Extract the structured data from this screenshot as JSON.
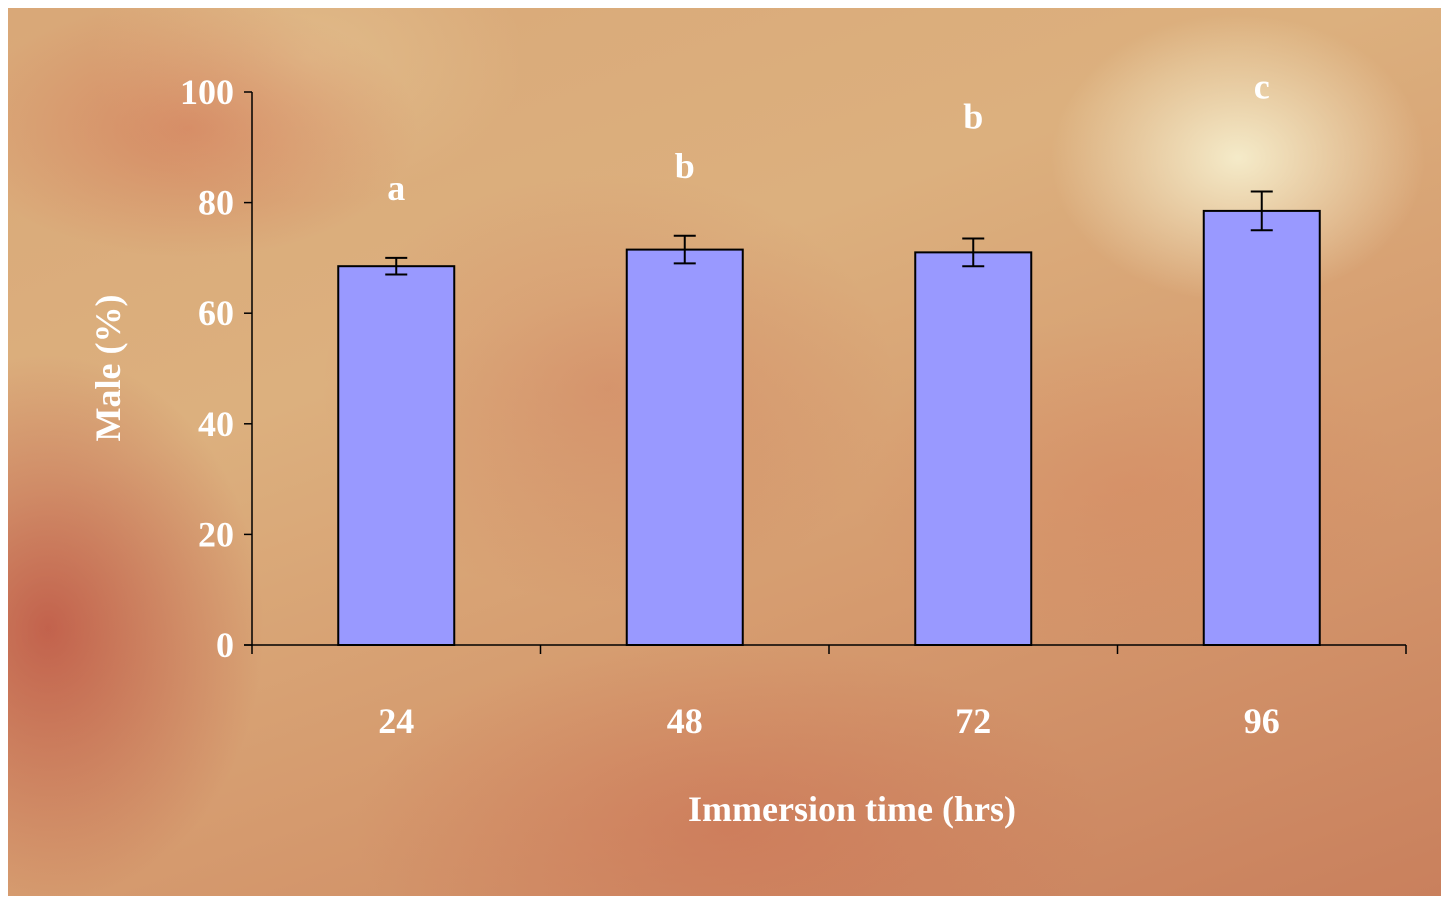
{
  "chart_data": {
    "type": "bar",
    "categories": [
      "24",
      "48",
      "72",
      "96"
    ],
    "values": [
      68.5,
      71.5,
      71.0,
      78.5
    ],
    "errors": [
      1.5,
      2.5,
      2.5,
      3.5
    ],
    "significance_letters": [
      "a",
      "b",
      "b",
      "c"
    ],
    "title": "",
    "xlabel": "Immersion time (hrs)",
    "ylabel": "Male (%)",
    "ylim": [
      0,
      100
    ],
    "yticks": [
      0,
      20,
      40,
      60,
      80,
      100
    ],
    "grid": false,
    "bar_color": "#9999ff",
    "bar_edge_color": "#000000",
    "text_color": "#ffffff"
  }
}
